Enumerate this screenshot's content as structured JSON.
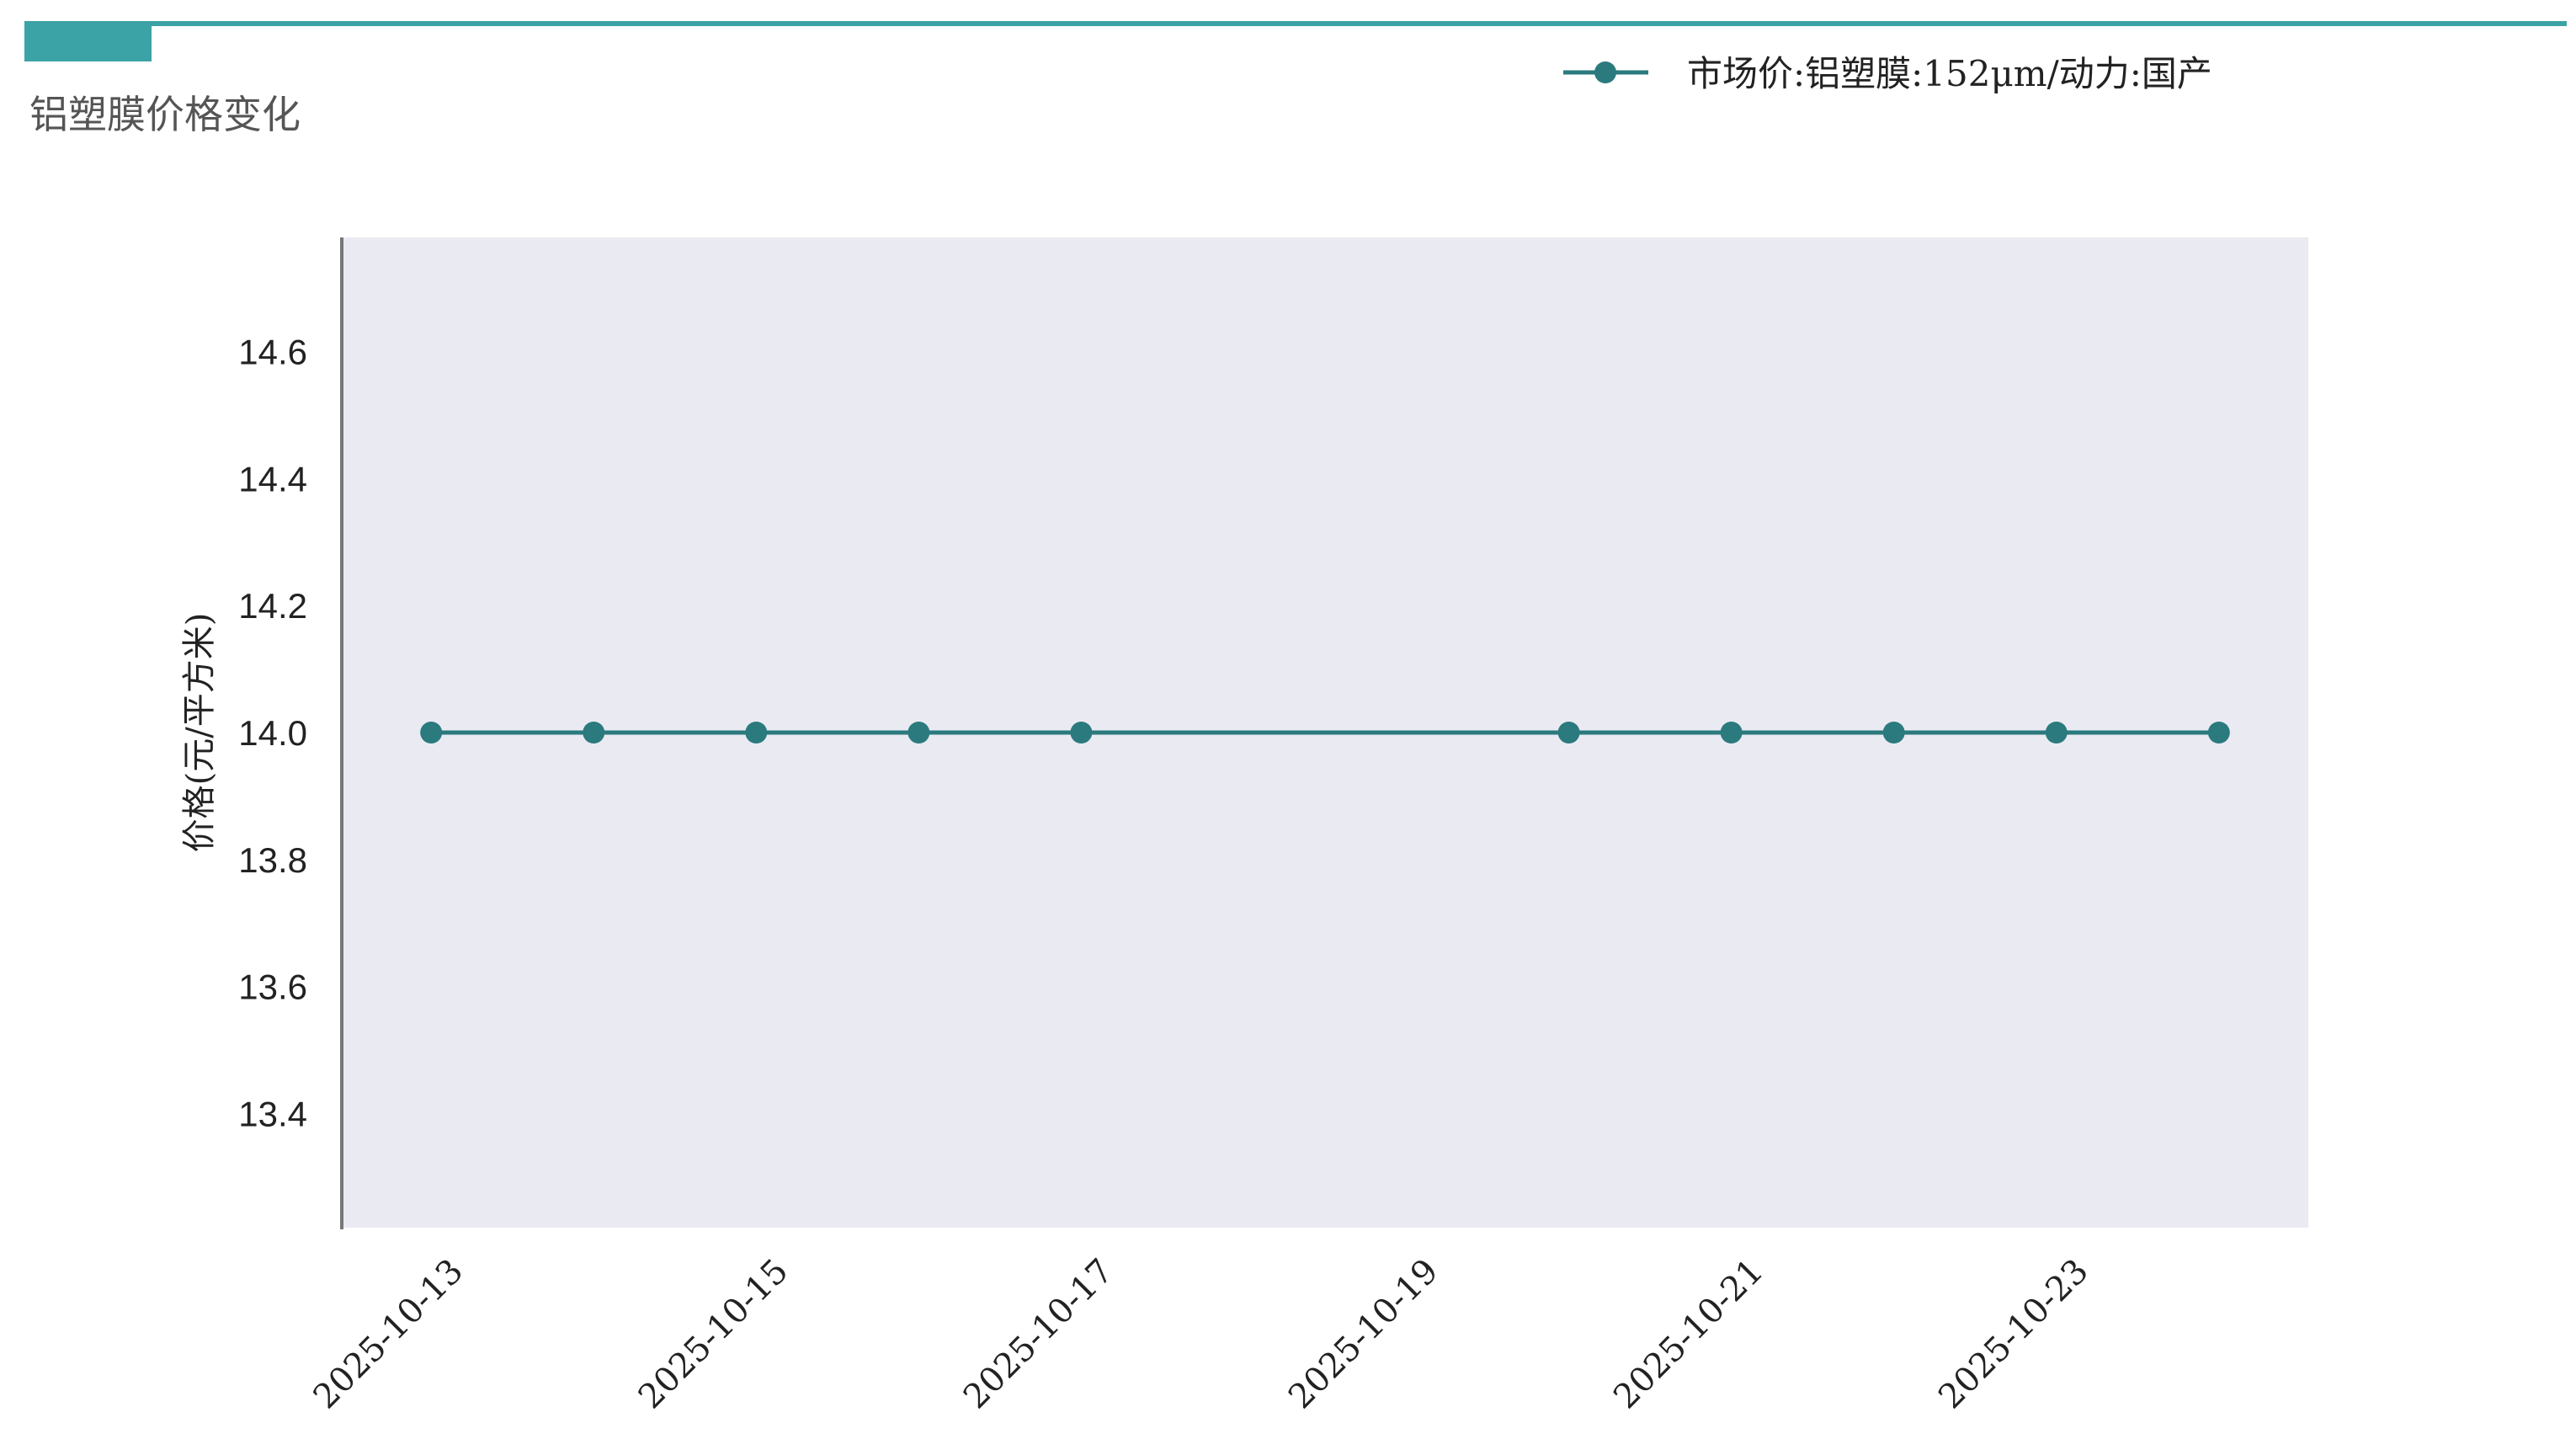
{
  "header": {
    "title": "铝塑膜价格变化",
    "accent_color": "#3ba3a6"
  },
  "chart_data": {
    "type": "line",
    "title": "",
    "xlabel": "",
    "ylabel": "价格(元/平方米)",
    "x": [
      "2025-10-13",
      "2025-10-14",
      "2025-10-15",
      "2025-10-16",
      "2025-10-17",
      "2025-10-20",
      "2025-10-21",
      "2025-10-22",
      "2025-10-23",
      "2025-10-24"
    ],
    "series": [
      {
        "name": "市场价:铝塑膜:152μm/动力:国产",
        "values": [
          14.0,
          14.0,
          14.0,
          14.0,
          14.0,
          14.0,
          14.0,
          14.0,
          14.0,
          14.0
        ],
        "color": "#2a7a7e",
        "marker": "circle"
      }
    ],
    "xlim": [
      "2025-10-12.45",
      "2025-10-24.55"
    ],
    "ylim": [
      13.22,
      14.78
    ],
    "yticks": [
      "13.4",
      "13.6",
      "13.8",
      "14.0",
      "14.2",
      "14.4",
      "14.6"
    ],
    "xticks": [
      "2025-10-13",
      "2025-10-15",
      "2025-10-17",
      "2025-10-19",
      "2025-10-21",
      "2025-10-23"
    ],
    "grid": false,
    "legend": "top-right",
    "background": "#eaeaf2"
  }
}
